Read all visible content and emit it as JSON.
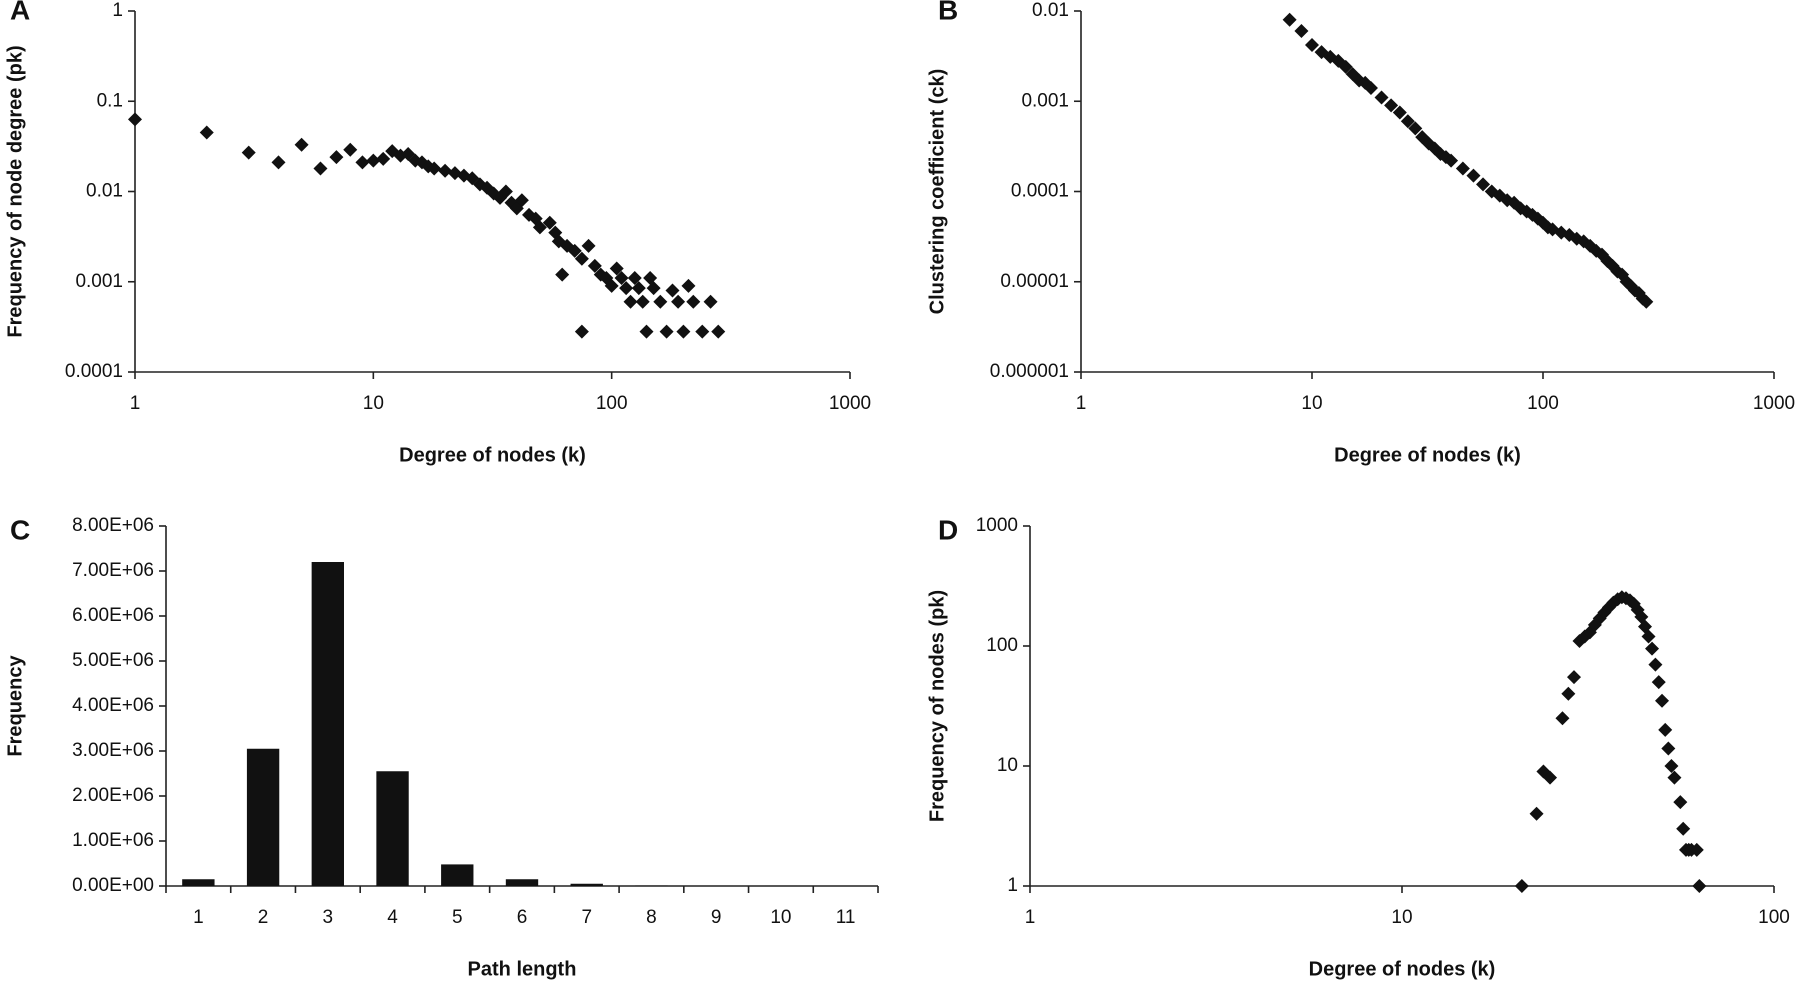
{
  "chart_data": [
    {
      "type": "scatter",
      "label": "A",
      "xscale": "log",
      "yscale": "log",
      "color": "#111",
      "x_label": "Degree of nodes (k)",
      "y_label": "Frequency of node degree (pk)",
      "xlim": [
        1,
        1000
      ],
      "xticks": [
        1,
        10,
        100,
        1000
      ],
      "ylim": [
        0.0001,
        1
      ],
      "yticks": [
        0.0001,
        0.001,
        0.01,
        0.1,
        1
      ],
      "x": [
        1,
        2,
        3,
        4,
        5,
        6,
        7,
        8,
        9,
        10,
        11,
        12,
        13,
        14,
        15,
        16,
        17,
        18,
        20,
        22,
        24,
        26,
        28,
        30,
        32,
        34,
        36,
        38,
        40,
        42,
        45,
        48,
        50,
        55,
        58,
        60,
        62,
        65,
        70,
        75,
        75,
        80,
        85,
        90,
        95,
        100,
        105,
        110,
        115,
        120,
        125,
        130,
        135,
        140,
        145,
        150,
        160,
        170,
        180,
        190,
        200,
        210,
        220,
        240,
        260,
        280
      ],
      "values": [
        0.063,
        0.045,
        0.027,
        0.021,
        0.033,
        0.018,
        0.024,
        0.029,
        0.021,
        0.022,
        0.023,
        0.028,
        0.025,
        0.026,
        0.022,
        0.021,
        0.019,
        0.018,
        0.017,
        0.016,
        0.015,
        0.014,
        0.012,
        0.011,
        0.0095,
        0.0085,
        0.01,
        0.0075,
        0.0065,
        0.008,
        0.0055,
        0.005,
        0.004,
        0.0045,
        0.0035,
        0.0028,
        0.0012,
        0.0025,
        0.0022,
        0.0018,
        0.00028,
        0.0025,
        0.0015,
        0.0012,
        0.0011,
        0.0009,
        0.0014,
        0.0011,
        0.00085,
        0.0006,
        0.0011,
        0.00085,
        0.0006,
        0.00028,
        0.0011,
        0.00085,
        0.0006,
        0.00028,
        0.0008,
        0.0006,
        0.00028,
        0.0009,
        0.0006,
        0.00028,
        0.0006,
        0.00028
      ]
    },
    {
      "type": "scatter",
      "label": "B",
      "xscale": "log",
      "yscale": "log",
      "color": "#111",
      "x_label": "Degree of nodes (k)",
      "y_label": "Clustering coefficient (ck)",
      "xlim": [
        1,
        1000
      ],
      "xticks": [
        1,
        10,
        100,
        1000
      ],
      "ylim": [
        1e-06,
        0.01
      ],
      "yticks": [
        1e-06,
        1e-05,
        0.0001,
        0.001,
        0.01
      ],
      "x": [
        8,
        9,
        10,
        11,
        12,
        13,
        14,
        15,
        16,
        17,
        18,
        20,
        22,
        24,
        26,
        28,
        30,
        32,
        34,
        36,
        38,
        40,
        45,
        50,
        55,
        60,
        65,
        70,
        75,
        80,
        85,
        90,
        95,
        100,
        105,
        110,
        120,
        130,
        140,
        150,
        160,
        170,
        180,
        190,
        200,
        210,
        220,
        230,
        240,
        250,
        260,
        270,
        280
      ],
      "values": [
        0.008,
        0.006,
        0.0042,
        0.0035,
        0.0031,
        0.0028,
        0.0024,
        0.002,
        0.0017,
        0.0016,
        0.0014,
        0.0011,
        0.0009,
        0.00075,
        0.0006,
        0.0005,
        0.0004,
        0.00034,
        0.0003,
        0.00026,
        0.00024,
        0.00022,
        0.00018,
        0.00015,
        0.00012,
        0.0001,
        9e-05,
        8e-05,
        7.5e-05,
        6.5e-05,
        6e-05,
        5.5e-05,
        5e-05,
        4.5e-05,
        4e-05,
        3.8e-05,
        3.5e-05,
        3.3e-05,
        3e-05,
        2.8e-05,
        2.5e-05,
        2.2e-05,
        2e-05,
        1.7e-05,
        1.5e-05,
        1.3e-05,
        1.2e-05,
        1e-05,
        9e-06,
        8e-06,
        7.5e-06,
        6.5e-06,
        6e-06
      ]
    },
    {
      "type": "bar",
      "label": "C",
      "color": "#111",
      "x_label": "Path length",
      "y_label": "Frequency",
      "categories": [
        "1",
        "2",
        "3",
        "4",
        "5",
        "6",
        "7",
        "8",
        "9",
        "10",
        "11"
      ],
      "values": [
        150000,
        3050000,
        7200000,
        2550000,
        480000,
        150000,
        50000,
        10000,
        2000,
        500,
        100
      ],
      "ylim": [
        0,
        8000000
      ],
      "yticks": [
        {
          "value": 0,
          "label": "0.00E+00"
        },
        {
          "value": 1000000,
          "label": "1.00E+06"
        },
        {
          "value": 2000000,
          "label": "2.00E+06"
        },
        {
          "value": 3000000,
          "label": "3.00E+06"
        },
        {
          "value": 4000000,
          "label": "4.00E+06"
        },
        {
          "value": 5000000,
          "label": "5.00E+06"
        },
        {
          "value": 6000000,
          "label": "6.00E+06"
        },
        {
          "value": 7000000,
          "label": "7.00E+06"
        },
        {
          "value": 8000000,
          "label": "8.00E+06"
        }
      ]
    },
    {
      "type": "scatter",
      "label": "D",
      "xscale": "log",
      "yscale": "log",
      "color": "#111",
      "x_label": "Degree of nodes (k)",
      "y_label": "Frequency of nodes (pk)",
      "xlim": [
        1,
        100
      ],
      "xticks": [
        1,
        10,
        100
      ],
      "ylim": [
        1,
        1000
      ],
      "yticks": [
        1,
        10,
        100,
        1000
      ],
      "x": [
        21,
        23,
        24,
        25,
        27,
        28,
        29,
        30,
        31,
        32,
        33,
        34,
        35,
        36,
        37,
        38,
        39,
        40,
        41,
        42,
        43,
        44,
        45,
        46,
        47,
        48,
        49,
        50,
        51,
        52,
        53,
        54,
        56,
        57,
        58,
        59,
        60,
        62,
        63
      ],
      "values": [
        1,
        4,
        9,
        8,
        25,
        40,
        55,
        110,
        120,
        130,
        150,
        170,
        190,
        210,
        230,
        245,
        255,
        250,
        240,
        225,
        200,
        175,
        145,
        120,
        95,
        70,
        50,
        35,
        20,
        14,
        10,
        8,
        5,
        3,
        2,
        2,
        2,
        2,
        1
      ]
    }
  ]
}
